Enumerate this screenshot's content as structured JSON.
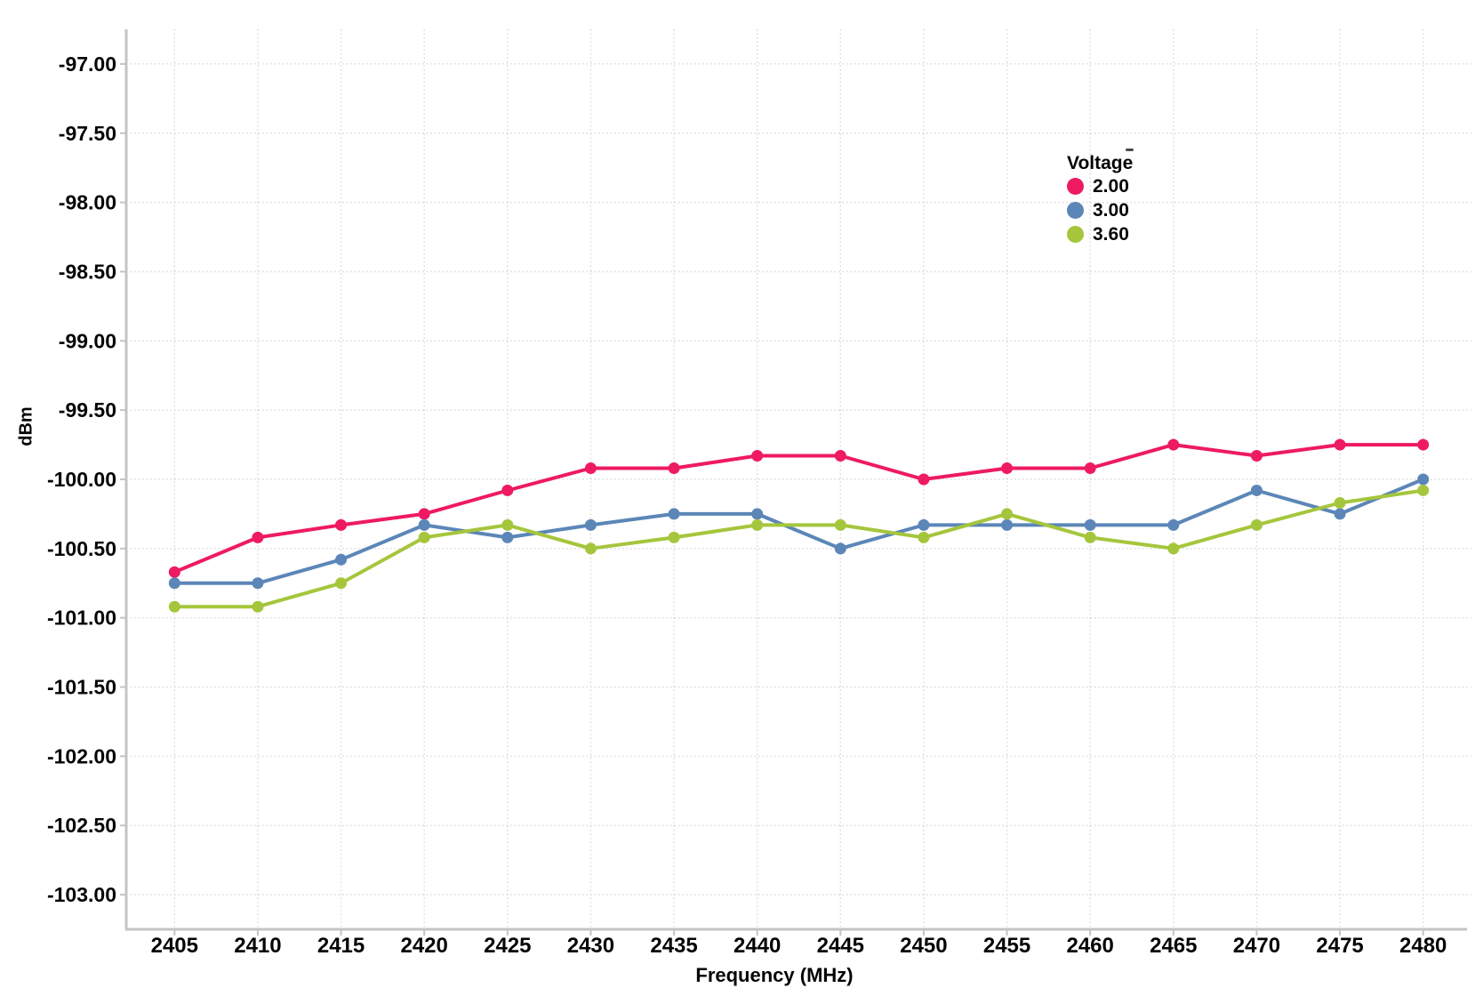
{
  "chart_data": {
    "type": "line",
    "title": "",
    "xlabel": "Frequency (MHz)",
    "ylabel": "dBm",
    "grid": true,
    "xlim": [
      2402.1,
      2482.9
    ],
    "ylim": [
      -103.25,
      -96.75
    ],
    "x": [
      2405,
      2410,
      2415,
      2420,
      2425,
      2430,
      2435,
      2440,
      2445,
      2450,
      2455,
      2460,
      2465,
      2470,
      2475,
      2480
    ],
    "x_tick_labels": [
      "2405",
      "2410",
      "2415",
      "2420",
      "2425",
      "2430",
      "2435",
      "2440",
      "2445",
      "2450",
      "2455",
      "2460",
      "2465",
      "2470",
      "2475",
      "2480"
    ],
    "y_ticks": [
      -97.0,
      -97.5,
      -98.0,
      -98.5,
      -99.0,
      -99.5,
      -100.0,
      -100.5,
      -101.0,
      -101.5,
      -102.0,
      -102.5,
      -103.0
    ],
    "y_tick_labels": [
      "-97.00",
      "-97.50",
      "-98.00",
      "-98.50",
      "-99.00",
      "-99.50",
      "-100.00",
      "-100.50",
      "-101.00",
      "-101.50",
      "-102.00",
      "-102.50",
      "-103.00"
    ],
    "legend": {
      "title": "Voltage",
      "position": "inside-top-right"
    },
    "series": [
      {
        "name": "2.00",
        "color": "#EE1A63",
        "values": [
          -100.67,
          -100.42,
          -100.33,
          -100.25,
          -100.08,
          -99.92,
          -99.92,
          -99.83,
          -99.83,
          -100.0,
          -99.92,
          -99.92,
          -99.75,
          -99.83,
          -99.75,
          -99.75
        ]
      },
      {
        "name": "3.00",
        "color": "#5C86B7",
        "values": [
          -100.75,
          -100.75,
          -100.58,
          -100.33,
          -100.42,
          -100.33,
          -100.25,
          -100.25,
          -100.5,
          -100.33,
          -100.33,
          -100.33,
          -100.33,
          -100.08,
          -100.25,
          -100.0
        ]
      },
      {
        "name": "3.60",
        "color": "#A5C63C",
        "values": [
          -100.92,
          -100.92,
          -100.75,
          -100.42,
          -100.33,
          -100.5,
          -100.42,
          -100.33,
          -100.33,
          -100.42,
          -100.25,
          -100.42,
          -100.5,
          -100.33,
          -100.17,
          -100.08
        ]
      }
    ]
  },
  "colors": {
    "background": "#FFFFFF",
    "gridline": "#D9D9D9",
    "axis_line": "#C4C4C4",
    "tick_text": "#050505"
  }
}
